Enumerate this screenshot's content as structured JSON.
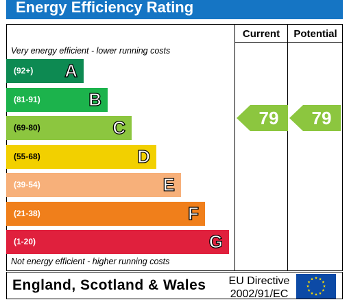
{
  "title": "Energy Efficiency Rating",
  "columns": {
    "current": "Current",
    "potential": "Potential"
  },
  "top_note": "Very energy efficient - lower running costs",
  "bottom_note": "Not energy efficient - higher running costs",
  "region": "England, Scotland & Wales",
  "directive": {
    "line1": "EU Directive",
    "line2": "2002/91/EC"
  },
  "colors": {
    "A": "#0d8a52",
    "B": "#1cb34c",
    "C": "#8cc63f",
    "D": "#f2d000",
    "E": "#f7b07a",
    "F": "#f07f1b",
    "G": "#e0203d",
    "header": "#1575c4",
    "pointer": "#8cc63f",
    "flag": "#0c4aa6",
    "stars": "#ffde00"
  },
  "chart_data": {
    "type": "bar",
    "title": "Energy Efficiency Rating",
    "categories": [
      "A",
      "B",
      "C",
      "D",
      "E",
      "F",
      "G"
    ],
    "ranges": [
      "(92+)",
      "(81-91)",
      "(69-80)",
      "(55-68)",
      "(39-54)",
      "(21-38)",
      "(1-20)"
    ],
    "current": {
      "value": 79,
      "band": "C"
    },
    "potential": {
      "value": 79,
      "band": "C"
    }
  }
}
